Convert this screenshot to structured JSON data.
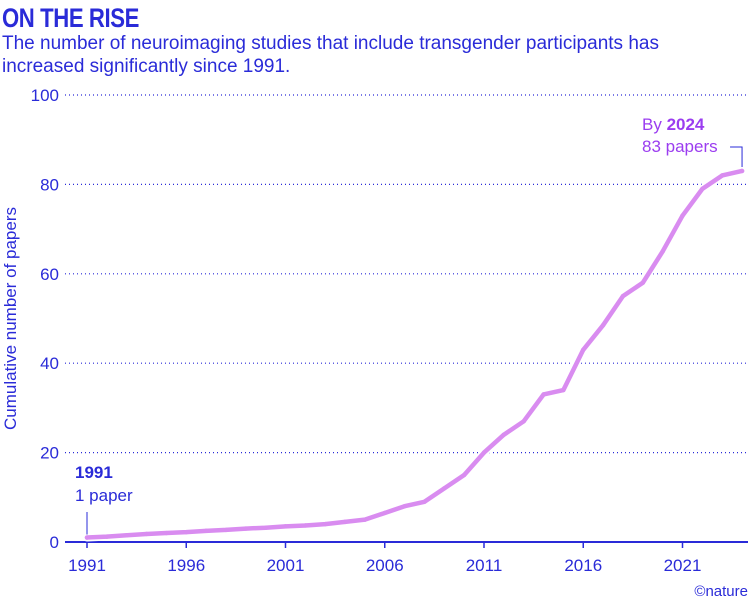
{
  "header": {
    "title": "ON THE RISE",
    "subtitle": "The number of neuroimaging studies that include transgender participants has increased significantly since 1991."
  },
  "chart_data": {
    "type": "line",
    "ylabel": "Cumulative number of papers",
    "xlim": [
      1991,
      2024
    ],
    "ylim": [
      0,
      100
    ],
    "x_ticks": [
      1991,
      1996,
      2001,
      2006,
      2011,
      2016,
      2021
    ],
    "y_ticks": [
      0,
      20,
      40,
      60,
      80,
      100
    ],
    "grid": "horizontal dotted",
    "line_color": "#d98cf0",
    "axis_color": "#2a2bd8",
    "series": [
      {
        "x": [
          1991,
          1992,
          1993,
          1994,
          1995,
          1996,
          1997,
          1998,
          1999,
          2000,
          2001,
          2002,
          2003,
          2004,
          2005,
          2006,
          2007,
          2008,
          2009,
          2010,
          2011,
          2012,
          2013,
          2014,
          2015,
          2016,
          2017,
          2018,
          2019,
          2020,
          2021,
          2022,
          2023,
          2024
        ],
        "y": [
          1,
          1.2,
          1.5,
          1.8,
          2,
          2.2,
          2.5,
          2.7,
          3,
          3.2,
          3.5,
          3.7,
          4,
          4.5,
          5,
          6.5,
          8,
          9,
          12,
          15,
          20,
          24,
          27,
          33,
          34,
          43,
          48.5,
          55,
          58,
          65,
          73,
          79,
          82,
          83
        ]
      }
    ],
    "annotations": {
      "start": {
        "year": "1991",
        "text": "1 paper"
      },
      "end": {
        "prefix": "By ",
        "year": "2024",
        "text": "83 papers"
      }
    }
  },
  "footer": {
    "credit": "©nature"
  }
}
